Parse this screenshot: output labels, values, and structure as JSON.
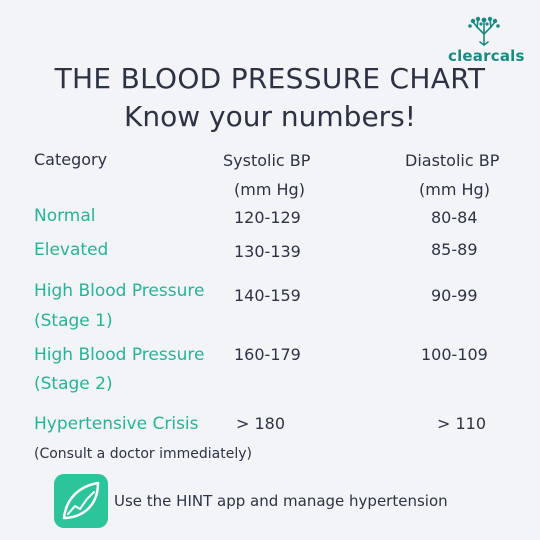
{
  "brand": {
    "name": "clearcals",
    "color": "#1a8a82",
    "icon": "tree-icon"
  },
  "title": "THE BLOOD PRESSURE CHART",
  "subtitle": "Know your numbers!",
  "table": {
    "headers": {
      "category": "Category",
      "systolic": "Systolic BP",
      "systolic_unit": "(mm Hg)",
      "diastolic": "Diastolic BP",
      "diastolic_unit": "(mm Hg)"
    },
    "rows": [
      {
        "category": "Normal",
        "category_line2": "",
        "systolic": "120-129",
        "diastolic": "80-84"
      },
      {
        "category": "Elevated",
        "category_line2": "",
        "systolic": "130-139",
        "diastolic": "85-89"
      },
      {
        "category": "High Blood Pressure",
        "category_line2": "(Stage 1)",
        "systolic": "140-159",
        "diastolic": "90-99"
      },
      {
        "category": "High Blood Pressure",
        "category_line2": "(Stage 2)",
        "systolic": "160-179",
        "diastolic": "100-109"
      },
      {
        "category": "Hypertensive Crisis",
        "category_line2": "",
        "systolic": "> 180",
        "diastolic": "> 110"
      }
    ],
    "crisis_note": "(Consult a doctor immediately)"
  },
  "footer": {
    "app_icon": "leaf-chart-icon",
    "app_text": "Use the HINT app and manage hypertension"
  },
  "colors": {
    "accent": "#25b497",
    "text": "#2d3345",
    "background": "#f2f4f7",
    "app_icon_bg": "#2cc49a"
  }
}
